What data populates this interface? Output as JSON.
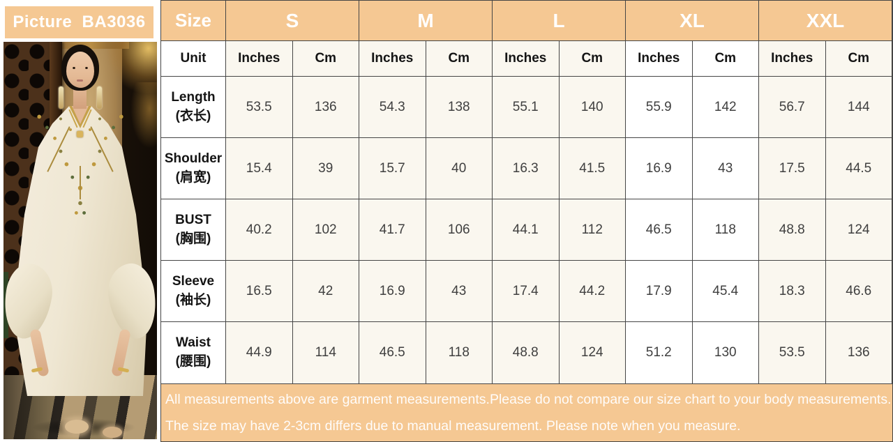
{
  "colors": {
    "peach": "#f5c893",
    "cream": "#faf7ef",
    "grid_line": "#454545",
    "header_text": "#ffffff",
    "value_text": "#3f3f3f"
  },
  "left_panel": {
    "title": "Picture  BA3036"
  },
  "table": {
    "size_header": "Size",
    "sizes": [
      "S",
      "M",
      "L",
      "XL",
      "XXL"
    ],
    "unit_label": "Unit",
    "unit_headers": [
      "Inches",
      "Cm",
      "Inches",
      "Cm",
      "Inches",
      "Cm",
      "Inches",
      "Cm",
      "Inches",
      "Cm"
    ],
    "rows": [
      {
        "label_en": "Length",
        "label_zh": "(衣长)",
        "values": [
          "53.5",
          "136",
          "54.3",
          "138",
          "55.1",
          "140",
          "55.9",
          "142",
          "56.7",
          "144"
        ]
      },
      {
        "label_en": "Shoulder",
        "label_zh": "(肩宽)",
        "values": [
          "15.4",
          "39",
          "15.7",
          "40",
          "16.3",
          "41.5",
          "16.9",
          "43",
          "17.5",
          "44.5"
        ]
      },
      {
        "label_en": "BUST",
        "label_zh": "(胸围)",
        "values": [
          "40.2",
          "102",
          "41.7",
          "106",
          "44.1",
          "112",
          "46.5",
          "118",
          "48.8",
          "124"
        ]
      },
      {
        "label_en": "Sleeve",
        "label_zh": "(袖长)",
        "values": [
          "16.5",
          "42",
          "16.9",
          "43",
          "17.4",
          "44.2",
          "17.9",
          "45.4",
          "18.3",
          "46.6"
        ]
      },
      {
        "label_en": "Waist",
        "label_zh": "(腰围)",
        "values": [
          "44.9",
          "114",
          "46.5",
          "118",
          "48.8",
          "124",
          "51.2",
          "130",
          "53.5",
          "136"
        ]
      }
    ]
  },
  "footer": {
    "line1": "All measurements above are garment measurements.Please do not compare our size chart to your body measurements.",
    "line2": "The size may have 2-3cm differs due to manual measurement. Please note when you measure."
  }
}
